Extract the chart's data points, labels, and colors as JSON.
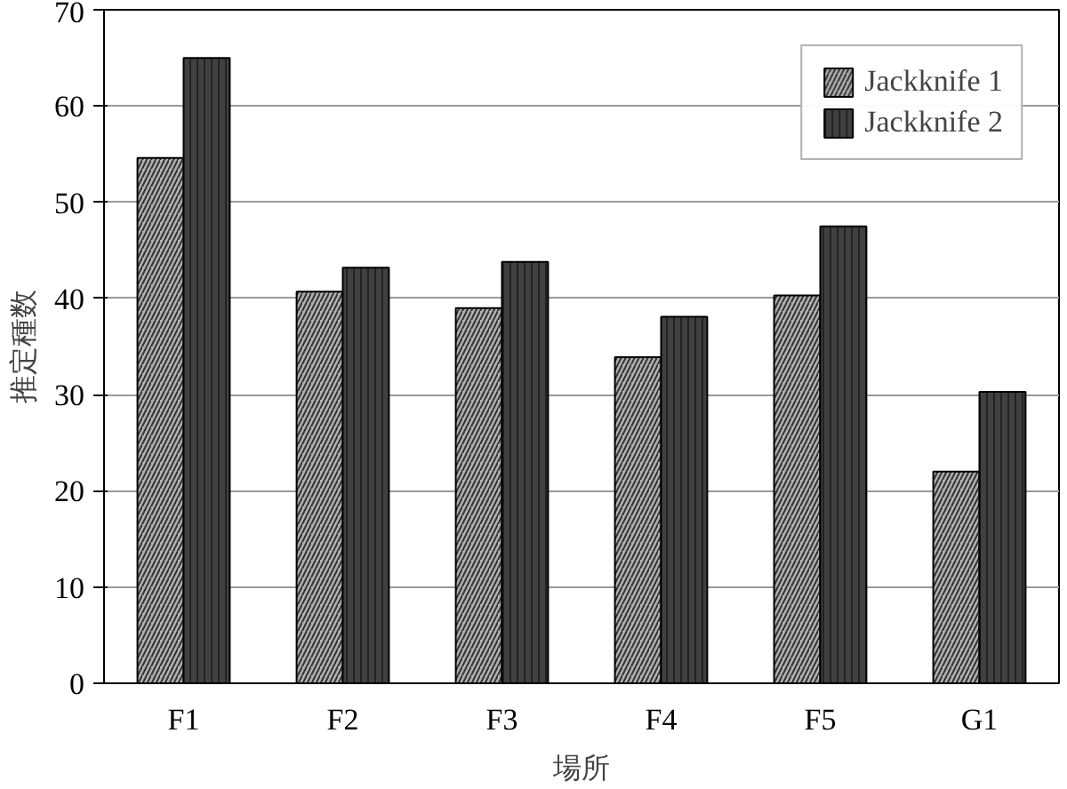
{
  "chart_data": {
    "type": "bar",
    "xlabel": "場所",
    "ylabel": "推定種数",
    "categories": [
      "F1",
      "F2",
      "F3",
      "F4",
      "F5",
      "G1"
    ],
    "series": [
      {
        "name": "Jackknife 1",
        "color": "#b0b0b0",
        "values": [
          54.6,
          40.7,
          39.0,
          33.9,
          40.3,
          22.0
        ]
      },
      {
        "name": "Jackknife 2",
        "color": "#404040",
        "values": [
          65.0,
          43.2,
          43.8,
          38.1,
          47.5,
          30.3
        ]
      }
    ],
    "ylim": [
      0,
      70
    ],
    "yticks": [
      0,
      10,
      20,
      30,
      40,
      50,
      60,
      70
    ],
    "grid": "y",
    "legend": "top right"
  }
}
